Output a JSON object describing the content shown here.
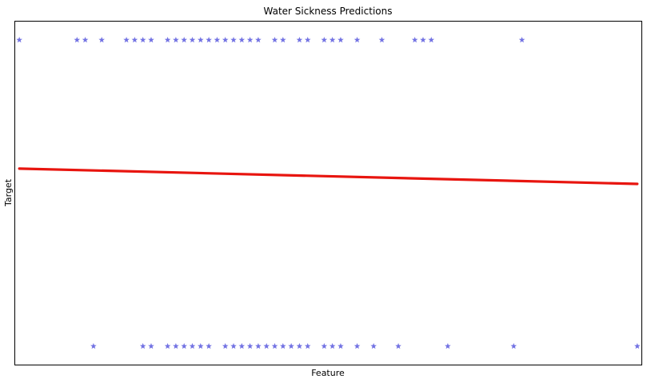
{
  "chart_data": {
    "type": "scatter",
    "title": "Water Sickness Predictions",
    "xlabel": "Feature",
    "ylabel": "Target",
    "xticks": false,
    "yticks": false,
    "grid": false,
    "legend": false,
    "xlim": [
      -0.5,
      75.5
    ],
    "ylim": [
      -0.06,
      1.06
    ],
    "colors": {
      "points": "#0000cc",
      "line": "#e8150f"
    },
    "marker": "star",
    "series": [
      {
        "kind": "points",
        "points": [
          [
            0,
            1
          ],
          [
            7,
            1
          ],
          [
            8,
            1
          ],
          [
            10,
            1
          ],
          [
            13,
            1
          ],
          [
            14,
            1
          ],
          [
            15,
            1
          ],
          [
            16,
            1
          ],
          [
            18,
            1
          ],
          [
            19,
            1
          ],
          [
            20,
            1
          ],
          [
            21,
            1
          ],
          [
            22,
            1
          ],
          [
            23,
            1
          ],
          [
            24,
            1
          ],
          [
            25,
            1
          ],
          [
            26,
            1
          ],
          [
            27,
            1
          ],
          [
            28,
            1
          ],
          [
            29,
            1
          ],
          [
            31,
            1
          ],
          [
            32,
            1
          ],
          [
            34,
            1
          ],
          [
            35,
            1
          ],
          [
            37,
            1
          ],
          [
            38,
            1
          ],
          [
            39,
            1
          ],
          [
            41,
            1
          ],
          [
            44,
            1
          ],
          [
            48,
            1
          ],
          [
            49,
            1
          ],
          [
            50,
            1
          ],
          [
            61,
            1
          ],
          [
            9,
            0
          ],
          [
            15,
            0
          ],
          [
            16,
            0
          ],
          [
            18,
            0
          ],
          [
            19,
            0
          ],
          [
            20,
            0
          ],
          [
            21,
            0
          ],
          [
            22,
            0
          ],
          [
            23,
            0
          ],
          [
            25,
            0
          ],
          [
            26,
            0
          ],
          [
            27,
            0
          ],
          [
            28,
            0
          ],
          [
            29,
            0
          ],
          [
            30,
            0
          ],
          [
            31,
            0
          ],
          [
            32,
            0
          ],
          [
            33,
            0
          ],
          [
            34,
            0
          ],
          [
            35,
            0
          ],
          [
            37,
            0
          ],
          [
            38,
            0
          ],
          [
            39,
            0
          ],
          [
            41,
            0
          ],
          [
            43,
            0
          ],
          [
            46,
            0
          ],
          [
            52,
            0
          ],
          [
            60,
            0
          ],
          [
            75,
            0
          ]
        ]
      },
      {
        "kind": "line",
        "x": [
          0,
          75
        ],
        "y": [
          0.58,
          0.53
        ]
      }
    ]
  }
}
